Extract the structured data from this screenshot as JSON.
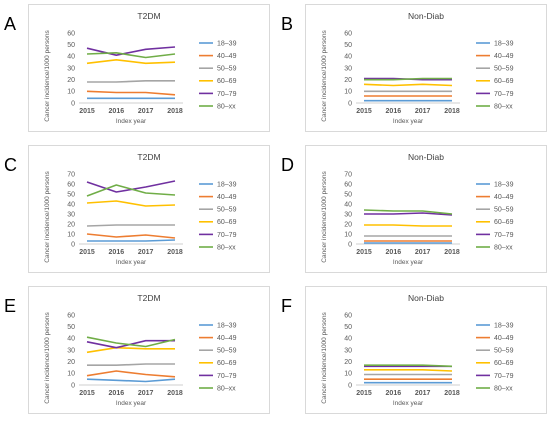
{
  "chart_data": [
    {
      "panel_label": "A",
      "type": "line",
      "title": "T2DM",
      "xlabel": "Index year",
      "ylabel": "Cancer incidence/1000 persons",
      "x": [
        "2015",
        "2016",
        "2017",
        "2018"
      ],
      "ylim": [
        0,
        60
      ],
      "yticks": [
        "0",
        "10",
        "20",
        "30",
        "40",
        "50",
        "60"
      ],
      "grid": false,
      "legend_position": "right",
      "series": [
        {
          "name": "18–39",
          "color": "#5b9bd5",
          "values": [
            4,
            4,
            4,
            4
          ]
        },
        {
          "name": "40–49",
          "color": "#ed7d31",
          "values": [
            10,
            9,
            9,
            7
          ]
        },
        {
          "name": "50–59",
          "color": "#a5a5a5",
          "values": [
            18,
            18,
            19,
            19
          ]
        },
        {
          "name": "60–69",
          "color": "#ffc000",
          "values": [
            34,
            37,
            34,
            35
          ]
        },
        {
          "name": "70–79",
          "color": "#7030a0",
          "values": [
            47,
            41,
            46,
            48
          ]
        },
        {
          "name": "80–xx",
          "color": "#70ad47",
          "values": [
            42,
            43,
            39,
            42
          ]
        }
      ]
    },
    {
      "panel_label": "B",
      "type": "line",
      "title": "Non-Diab",
      "xlabel": "Index year",
      "ylabel": "Cancer incidence/1000 persons",
      "x": [
        "2015",
        "2016",
        "2017",
        "2018"
      ],
      "ylim": [
        0,
        60
      ],
      "yticks": [
        "0",
        "10",
        "20",
        "30",
        "40",
        "50",
        "60"
      ],
      "grid": false,
      "legend_position": "right",
      "series": [
        {
          "name": "18–39",
          "color": "#5b9bd5",
          "values": [
            2,
            2,
            2,
            2
          ]
        },
        {
          "name": "40–49",
          "color": "#ed7d31",
          "values": [
            6,
            6,
            6,
            6
          ]
        },
        {
          "name": "50–59",
          "color": "#a5a5a5",
          "values": [
            10,
            10,
            10,
            10
          ]
        },
        {
          "name": "60–69",
          "color": "#ffc000",
          "values": [
            16,
            15,
            16,
            15
          ]
        },
        {
          "name": "70–79",
          "color": "#7030a0",
          "values": [
            21,
            21,
            20,
            20
          ]
        },
        {
          "name": "80–xx",
          "color": "#70ad47",
          "values": [
            20,
            20,
            21,
            21
          ]
        }
      ]
    },
    {
      "panel_label": "C",
      "type": "line",
      "title": "T2DM",
      "xlabel": "Index year",
      "ylabel": "Cancer incidence/1000 persons",
      "x": [
        "2015",
        "2016",
        "2017",
        "2018"
      ],
      "ylim": [
        0,
        70
      ],
      "yticks": [
        "0",
        "10",
        "20",
        "30",
        "40",
        "50",
        "60",
        "70"
      ],
      "grid": false,
      "legend_position": "right",
      "series": [
        {
          "name": "18–39",
          "color": "#5b9bd5",
          "values": [
            3,
            3,
            3,
            4
          ]
        },
        {
          "name": "40–49",
          "color": "#ed7d31",
          "values": [
            10,
            7,
            9,
            6
          ]
        },
        {
          "name": "50–59",
          "color": "#a5a5a5",
          "values": [
            18,
            19,
            19,
            19
          ]
        },
        {
          "name": "60–69",
          "color": "#ffc000",
          "values": [
            41,
            43,
            38,
            39
          ]
        },
        {
          "name": "70–79",
          "color": "#7030a0",
          "values": [
            62,
            52,
            57,
            63
          ]
        },
        {
          "name": "80–xx",
          "color": "#70ad47",
          "values": [
            48,
            59,
            51,
            49
          ]
        }
      ]
    },
    {
      "panel_label": "D",
      "type": "line",
      "title": "Non-Diab",
      "xlabel": "Index year",
      "ylabel": "Cancer incidence/1000 persons",
      "x": [
        "2015",
        "2016",
        "2017",
        "2018"
      ],
      "ylim": [
        0,
        70
      ],
      "yticks": [
        "0",
        "10",
        "20",
        "30",
        "40",
        "50",
        "60",
        "70"
      ],
      "grid": false,
      "legend_position": "right",
      "series": [
        {
          "name": "18–39",
          "color": "#5b9bd5",
          "values": [
            1,
            1,
            1,
            1
          ]
        },
        {
          "name": "40–49",
          "color": "#ed7d31",
          "values": [
            3,
            3,
            3,
            3
          ]
        },
        {
          "name": "50–59",
          "color": "#a5a5a5",
          "values": [
            8,
            8,
            8,
            8
          ]
        },
        {
          "name": "60–69",
          "color": "#ffc000",
          "values": [
            19,
            19,
            18,
            18
          ]
        },
        {
          "name": "70–79",
          "color": "#7030a0",
          "values": [
            30,
            30,
            31,
            29
          ]
        },
        {
          "name": "80–xx",
          "color": "#70ad47",
          "values": [
            34,
            33,
            33,
            30
          ]
        }
      ]
    },
    {
      "panel_label": "E",
      "type": "line",
      "title": "T2DM",
      "xlabel": "Index year",
      "ylabel": "Cancer incidence/1000 persons",
      "x": [
        "2015",
        "2016",
        "2017",
        "2018"
      ],
      "ylim": [
        0,
        60
      ],
      "yticks": [
        "0",
        "10",
        "20",
        "30",
        "40",
        "50",
        "60"
      ],
      "grid": false,
      "legend_position": "right",
      "series": [
        {
          "name": "18–39",
          "color": "#5b9bd5",
          "values": [
            5,
            4,
            3,
            5
          ]
        },
        {
          "name": "40–49",
          "color": "#ed7d31",
          "values": [
            8,
            12,
            9,
            7
          ]
        },
        {
          "name": "50–59",
          "color": "#a5a5a5",
          "values": [
            17,
            17,
            18,
            18
          ]
        },
        {
          "name": "60–69",
          "color": "#ffc000",
          "values": [
            28,
            32,
            31,
            31
          ]
        },
        {
          "name": "70–79",
          "color": "#7030a0",
          "values": [
            37,
            32,
            38,
            38
          ]
        },
        {
          "name": "80–xx",
          "color": "#70ad47",
          "values": [
            41,
            36,
            33,
            39
          ]
        }
      ]
    },
    {
      "panel_label": "F",
      "type": "line",
      "title": "Non-Diab",
      "xlabel": "Index year",
      "ylabel": "Cancer incidence/1000 persons",
      "x": [
        "2015",
        "2016",
        "2017",
        "2018"
      ],
      "ylim": [
        0,
        60
      ],
      "yticks": [
        "0",
        "10",
        "20",
        "30",
        "40",
        "50",
        "60"
      ],
      "grid": false,
      "legend_position": "right",
      "series": [
        {
          "name": "18–39",
          "color": "#5b9bd5",
          "values": [
            2,
            2,
            2,
            2
          ]
        },
        {
          "name": "40–49",
          "color": "#ed7d31",
          "values": [
            5,
            5,
            5,
            5
          ]
        },
        {
          "name": "50–59",
          "color": "#a5a5a5",
          "values": [
            9,
            9,
            9,
            9
          ]
        },
        {
          "name": "60–69",
          "color": "#ffc000",
          "values": [
            13,
            13,
            13,
            12
          ]
        },
        {
          "name": "70–79",
          "color": "#7030a0",
          "values": [
            16,
            16,
            16,
            16
          ]
        },
        {
          "name": "80–xx",
          "color": "#70ad47",
          "values": [
            17,
            17,
            17,
            16
          ]
        }
      ]
    }
  ]
}
